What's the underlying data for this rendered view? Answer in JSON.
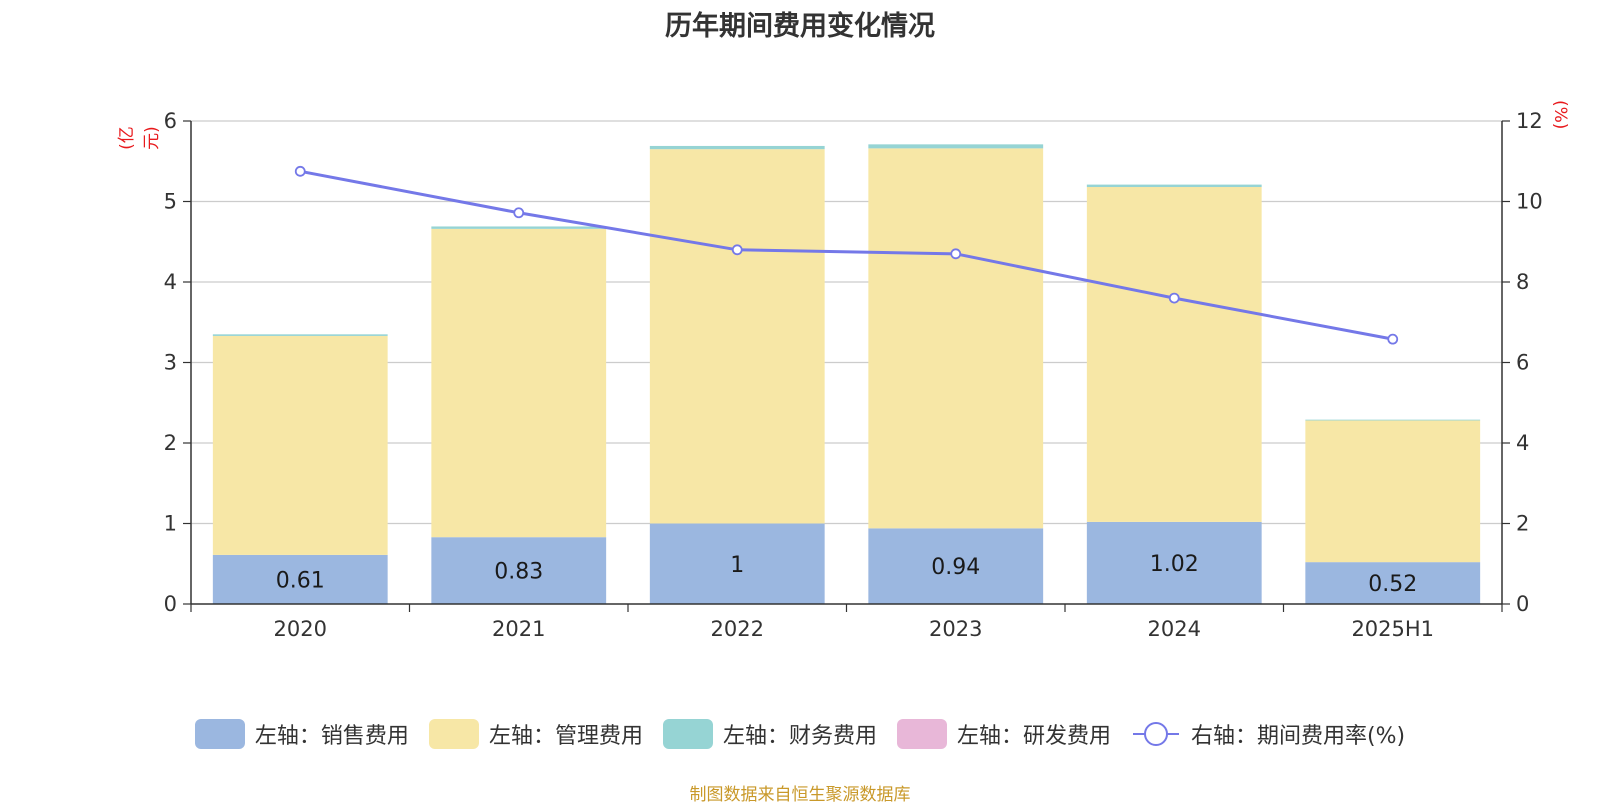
{
  "title": "历年期间费用变化情况",
  "left_unit": "(亿元)",
  "right_unit": "(%)",
  "source": "制图数据来自恒生聚源数据库",
  "chart_data": {
    "type": "bar",
    "stacked": true,
    "categories": [
      "2020",
      "2021",
      "2022",
      "2023",
      "2024",
      "2025H1"
    ],
    "left_axis": {
      "ylim": [
        0,
        6
      ],
      "ticks": [
        "0",
        "1",
        "2",
        "3",
        "4",
        "5",
        "6"
      ]
    },
    "right_axis": {
      "ylim": [
        0,
        12
      ],
      "ticks": [
        "0",
        "2",
        "4",
        "6",
        "8",
        "10",
        "12"
      ]
    },
    "grid": true,
    "legend_position": "bottom",
    "series": [
      {
        "name": "左轴：销售费用",
        "axis": "left",
        "type": "bar",
        "color": "#9bb7e0",
        "values": [
          0.61,
          0.83,
          1,
          0.94,
          1.02,
          0.52
        ],
        "labels": [
          "0.61",
          "0.83",
          "1",
          "0.94",
          "1.02",
          "0.52"
        ]
      },
      {
        "name": "左轴：管理费用",
        "axis": "left",
        "type": "bar",
        "color": "#f7e7a6",
        "values": [
          2.72,
          3.83,
          4.65,
          4.72,
          4.16,
          1.76
        ]
      },
      {
        "name": "左轴：财务费用",
        "axis": "left",
        "type": "bar",
        "color": "#96d4d4",
        "values": [
          0.02,
          0.03,
          0.04,
          0.05,
          0.03,
          0.01
        ]
      },
      {
        "name": "左轴：研发费用",
        "axis": "left",
        "type": "bar",
        "color": "#e8b7d8",
        "values": [
          0,
          0,
          0,
          0,
          0,
          0
        ]
      },
      {
        "name": "右轴：期间费用率(%)",
        "axis": "right",
        "type": "line",
        "color": "#7478e8",
        "values": [
          10.75,
          9.72,
          8.8,
          8.7,
          7.6,
          6.58
        ]
      }
    ]
  }
}
